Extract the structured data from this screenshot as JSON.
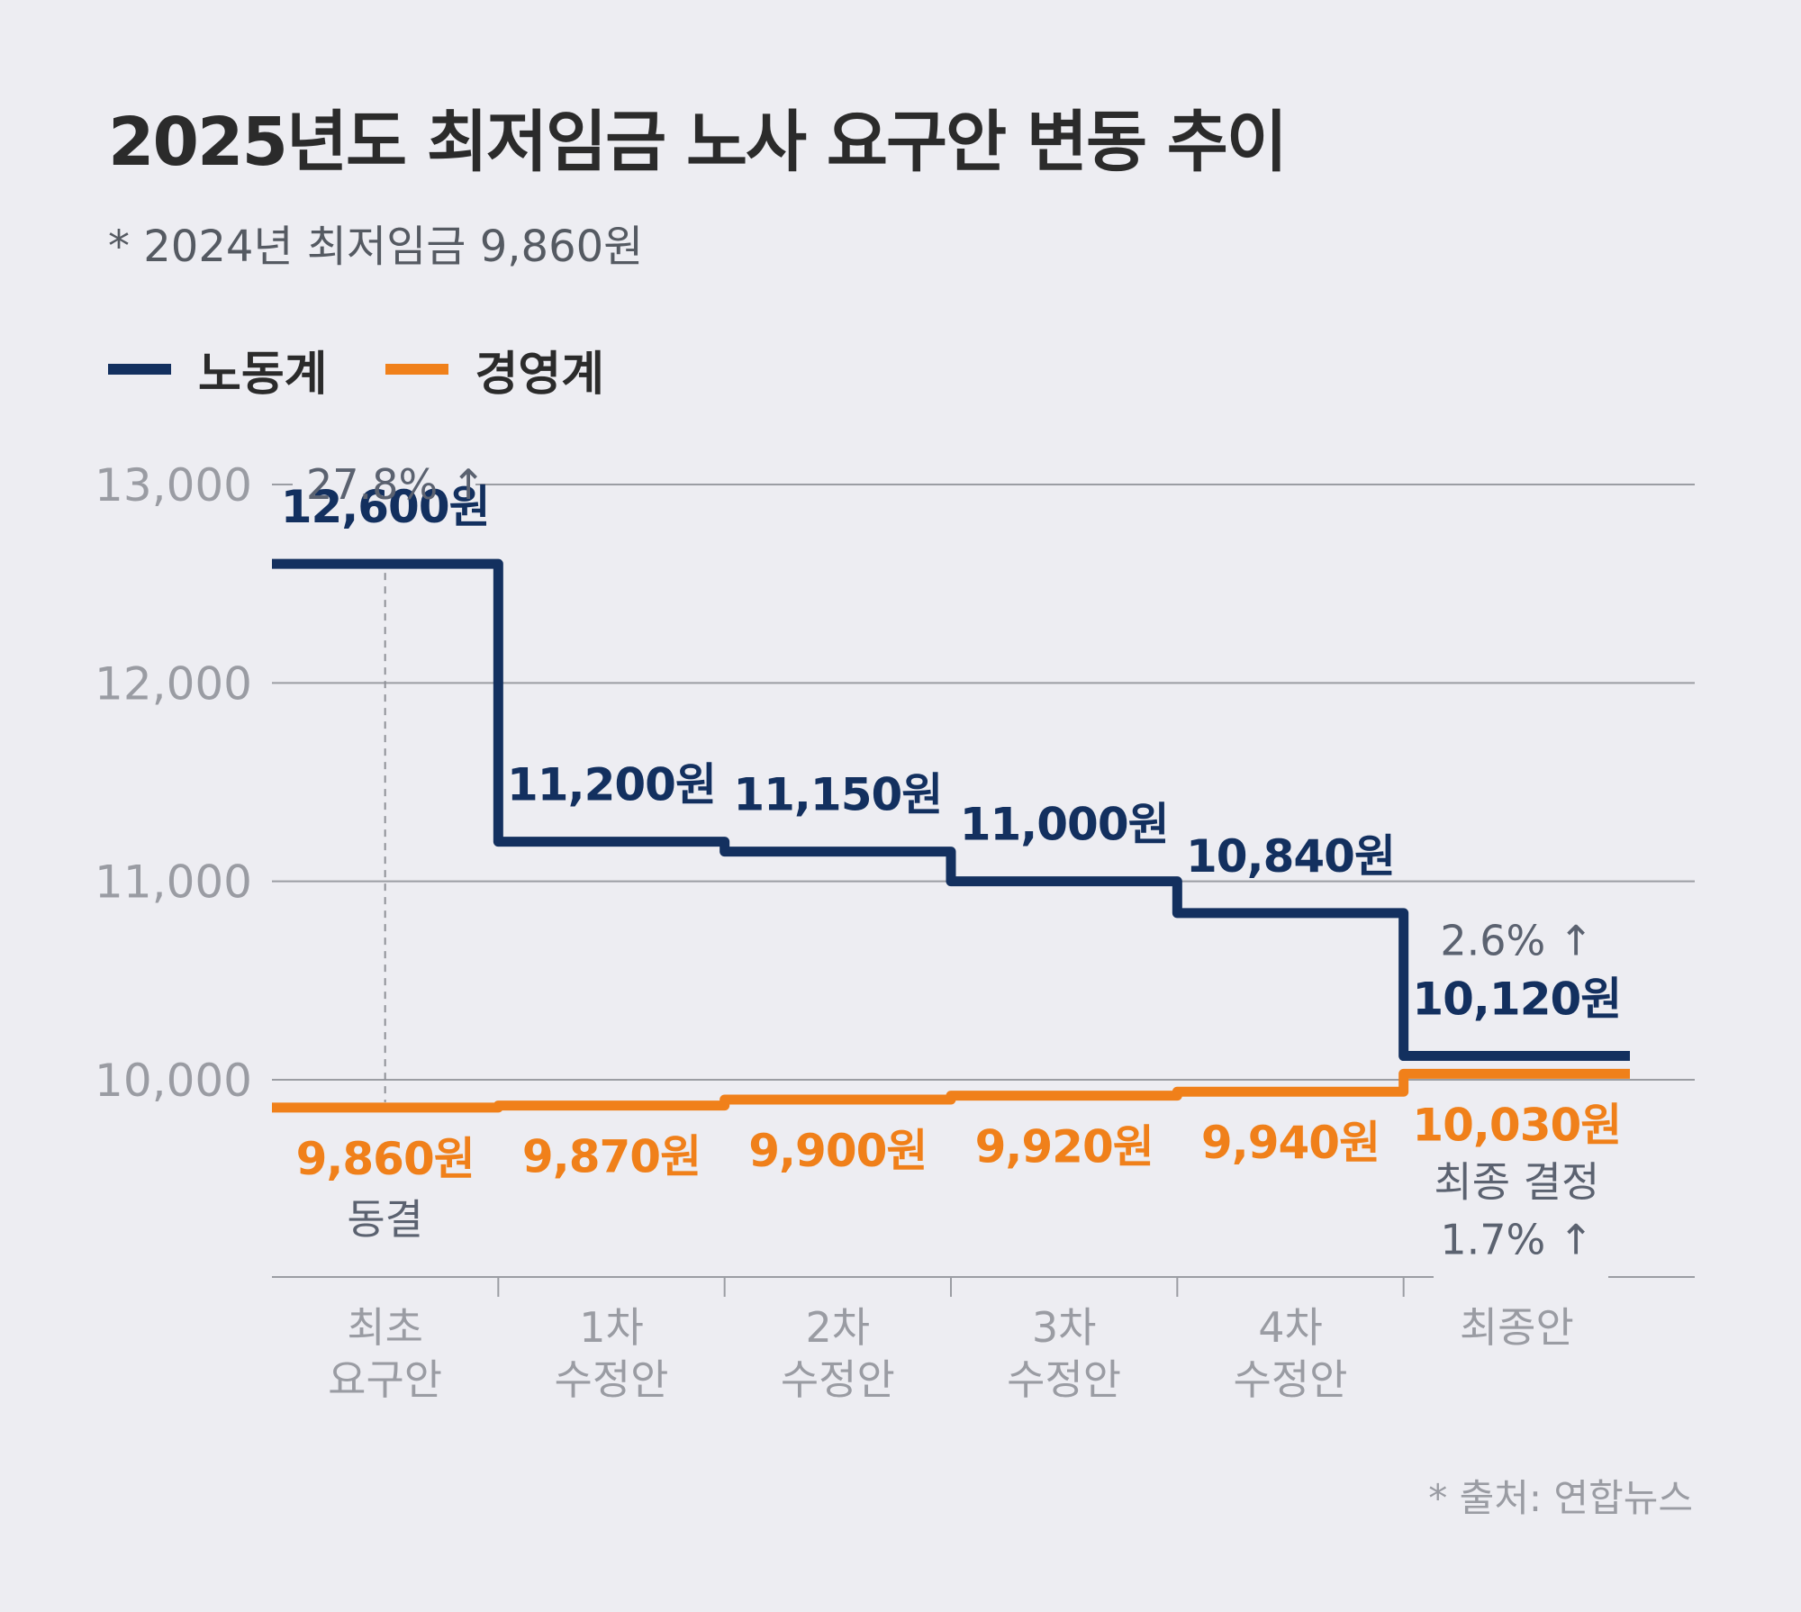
{
  "header": {
    "title": "2025년도 최저임금 노사 요구안 변동 추이",
    "subtitle": "* 2024년 최저임금 9,860원"
  },
  "legend": [
    {
      "label": "노동계",
      "color": "#13305f"
    },
    {
      "label": "경영계",
      "color": "#f0801a"
    }
  ],
  "footer": {
    "source": "* 출처: 연합뉴스"
  },
  "chart_data": {
    "type": "line",
    "step": true,
    "title": "2025년도 최저임금 노사 요구안 변동 추이",
    "subtitle": "* 2024년 최저임금 9,860원",
    "categories": [
      [
        "최초",
        "요구안"
      ],
      [
        "1차",
        "수정안"
      ],
      [
        "2차",
        "수정안"
      ],
      [
        "3차",
        "수정안"
      ],
      [
        "4차",
        "수정안"
      ],
      [
        "최종안"
      ]
    ],
    "ylim": [
      9000,
      13000
    ],
    "yticks": [
      10000,
      11000,
      12000,
      13000
    ],
    "ytick_labels": [
      "10,000",
      "11,000",
      "12,000",
      "13,000"
    ],
    "grid": true,
    "legend_position": "top-left",
    "series": [
      {
        "name": "노동계",
        "color": "#13305f",
        "values": [
          12600,
          11200,
          11150,
          11000,
          10840,
          10120
        ],
        "labels": [
          "12,600원",
          "11,200원",
          "11,150원",
          "11,000원",
          "10,840원",
          "10,120원"
        ]
      },
      {
        "name": "경영계",
        "color": "#f0801a",
        "values": [
          9860,
          9870,
          9900,
          9920,
          9940,
          10030
        ],
        "labels": [
          "9,860원",
          "9,870원",
          "9,900원",
          "9,920원",
          "9,940원",
          "10,030원"
        ]
      }
    ],
    "annotations": {
      "initial_increase": "27.8% ↑",
      "final_labor_increase": "2.6% ↑",
      "freeze_note": "동결",
      "final_decision": "최종 결정",
      "final_decision_increase": "1.7% ↑"
    }
  }
}
